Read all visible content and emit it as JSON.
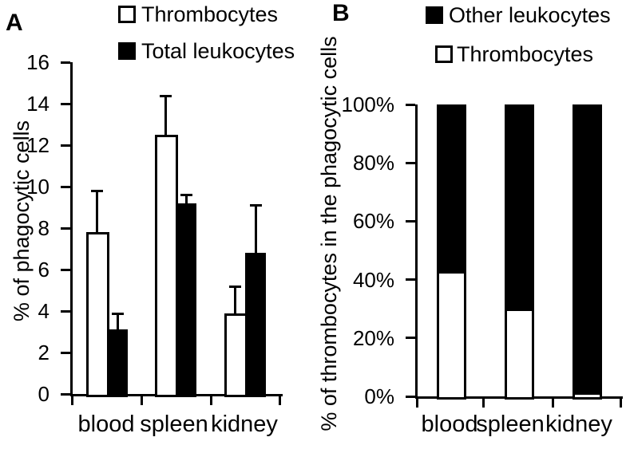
{
  "colors": {
    "foreground": "#000000",
    "background": "#ffffff"
  },
  "chart_data": [
    {
      "type": "bar",
      "panel_label": "A",
      "title": "",
      "xlabel": "",
      "ylabel": "% of phagocytic cells",
      "categories": [
        "blood",
        "spleen",
        "kidney"
      ],
      "ylim": [
        0,
        16
      ],
      "yticks": [
        0,
        2,
        4,
        6,
        8,
        10,
        12,
        14,
        16
      ],
      "ytick_labels": [
        "0",
        "2",
        "4",
        "6",
        "8",
        "10",
        "12",
        "14",
        "16"
      ],
      "grid": false,
      "legend_position": "top",
      "legend": [
        {
          "label": "Thrombocytes",
          "swatch": "white"
        },
        {
          "label": "Total leukocytes",
          "swatch": "black"
        }
      ],
      "series": [
        {
          "name": "Thrombocytes",
          "swatch": "white",
          "values": [
            7.8,
            12.5,
            3.9
          ],
          "error_plus": [
            2.0,
            1.9,
            1.3
          ]
        },
        {
          "name": "Total leukocytes",
          "swatch": "black",
          "values": [
            3.1,
            9.2,
            6.8
          ],
          "error_plus": [
            0.8,
            0.4,
            2.3
          ]
        }
      ]
    },
    {
      "type": "bar",
      "stacked": true,
      "panel_label": "B",
      "title": "",
      "xlabel": "",
      "ylabel": "% of thrombocytes in the phagocytic cells",
      "categories": [
        "blood",
        "spleen",
        "kidney"
      ],
      "ylim": [
        0,
        100
      ],
      "yticks": [
        0,
        20,
        40,
        60,
        80,
        100
      ],
      "ytick_labels": [
        "0%",
        "20%",
        "40%",
        "60%",
        "80%",
        "100%"
      ],
      "grid": false,
      "legend_position": "top",
      "legend": [
        {
          "label": "Other leukocytes",
          "swatch": "black"
        },
        {
          "label": "Thrombocytes",
          "swatch": "white"
        }
      ],
      "series": [
        {
          "name": "Thrombocytes",
          "swatch": "white",
          "values": [
            43,
            30,
            1.5
          ]
        },
        {
          "name": "Other leukocytes",
          "swatch": "black",
          "values": [
            57,
            70,
            98.5
          ]
        }
      ]
    }
  ]
}
